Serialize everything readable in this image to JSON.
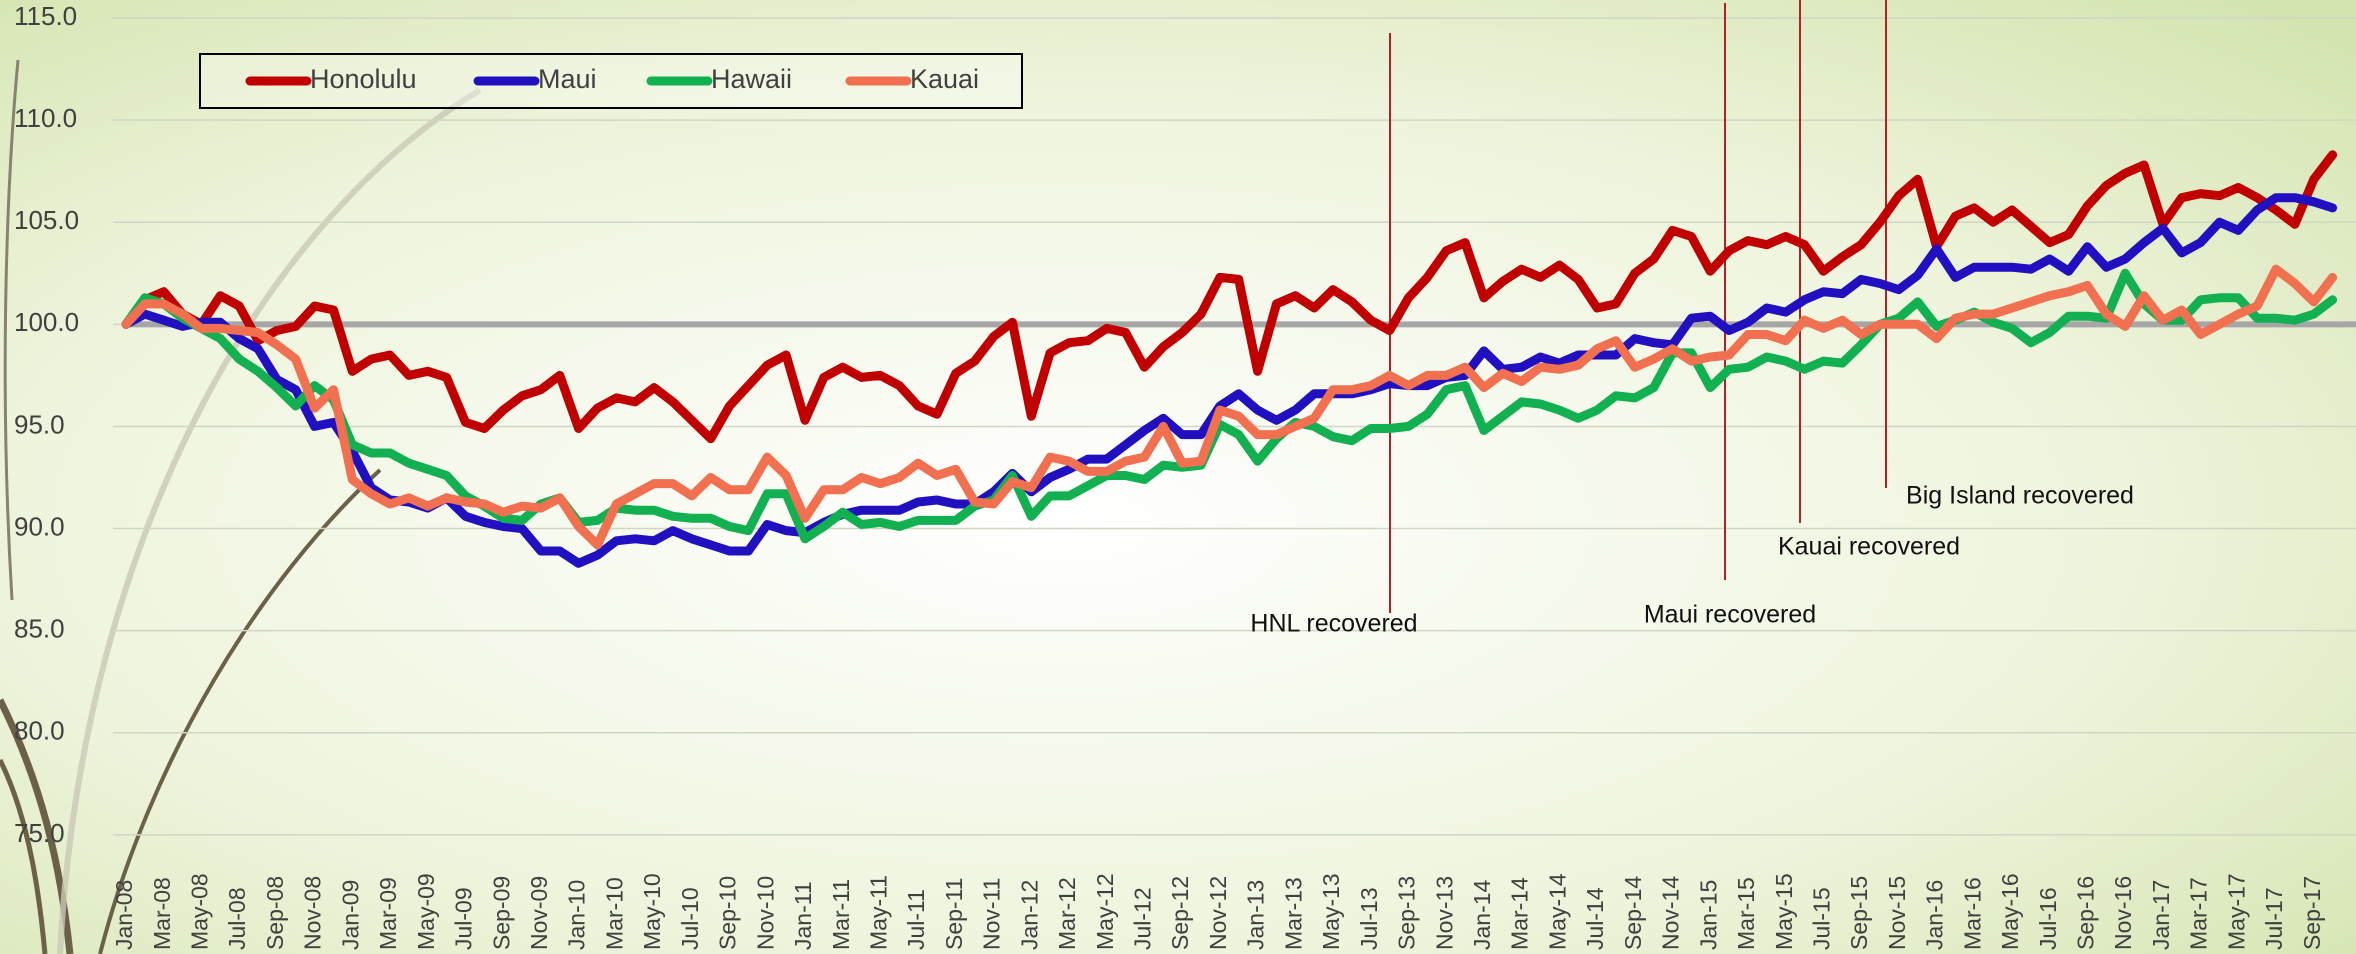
{
  "chart_data": {
    "type": "line",
    "categories": [
      "Jan-08",
      null,
      "Mar-08",
      null,
      "May-08",
      null,
      "Jul-08",
      null,
      "Sep-08",
      null,
      "Nov-08",
      null,
      "Jan-09",
      null,
      "Mar-09",
      null,
      "May-09",
      null,
      "Jul-09",
      null,
      "Sep-09",
      null,
      "Nov-09",
      null,
      "Jan-10",
      null,
      "Mar-10",
      null,
      "May-10",
      null,
      "Jul-10",
      null,
      "Sep-10",
      null,
      "Nov-10",
      null,
      "Jan-11",
      null,
      "Mar-11",
      null,
      "May-11",
      null,
      "Jul-11",
      null,
      "Sep-11",
      null,
      "Nov-11",
      null,
      "Jan-12",
      null,
      "Mar-12",
      null,
      "May-12",
      null,
      "Jul-12",
      null,
      "Sep-12",
      null,
      "Nov-12",
      null,
      "Jan-13",
      null,
      "Mar-13",
      null,
      "May-13",
      null,
      "Jul-13",
      null,
      "Sep-13",
      null,
      "Nov-13",
      null,
      "Jan-14",
      null,
      "Mar-14",
      null,
      "May-14",
      null,
      "Jul-14",
      null,
      "Sep-14",
      null,
      "Nov-14",
      null,
      "Jan-15",
      null,
      "Mar-15",
      null,
      "May-15",
      null,
      "Jul-15",
      null,
      "Sep-15",
      null,
      "Nov-15",
      null,
      "Jan-16",
      null,
      "Mar-16",
      null,
      "May-16",
      null,
      "Jul-16",
      null,
      "Sep-16",
      null,
      "Nov-16",
      null,
      "Jan-17",
      null,
      "Mar-17",
      null,
      "May-17",
      null,
      "Jul-17",
      null,
      "Sep-17",
      null
    ],
    "series": [
      {
        "name": "Honolulu",
        "color": "#c00000",
        "values": [
          100,
          101.2,
          101.6,
          100.5,
          100,
          101.4,
          100.9,
          99.2,
          99.7,
          99.9,
          100.9,
          100.7,
          97.7,
          98.3,
          98.5,
          97.5,
          97.7,
          97.4,
          95.2,
          94.9,
          95.8,
          96.5,
          96.8,
          97.5,
          94.9,
          95.9,
          96.4,
          96.2,
          96.9,
          96.2,
          95.3,
          94.4,
          96.0,
          97.0,
          98.0,
          98.5,
          95.3,
          97.4,
          97.9,
          97.4,
          97.5,
          97.0,
          96.0,
          95.6,
          97.6,
          98.2,
          99.4,
          100.1,
          95.5,
          98.6,
          99.1,
          99.2,
          99.8,
          99.6,
          97.9,
          98.9,
          99.6,
          100.5,
          102.3,
          102.2,
          97.7,
          101.0,
          101.4,
          100.8,
          101.7,
          101.1,
          100.2,
          99.7,
          101.3,
          102.3,
          103.6,
          104.0,
          101.3,
          102.1,
          102.7,
          102.3,
          102.9,
          102.2,
          100.8,
          101.0,
          102.5,
          103.2,
          104.6,
          104.3,
          102.6,
          103.6,
          104.1,
          103.9,
          104.3,
          103.9,
          102.6,
          103.3,
          103.9,
          105.0,
          106.3,
          107.1,
          103.8,
          105.3,
          105.7,
          105.0,
          105.6,
          104.8,
          104.0,
          104.4,
          105.8,
          106.8,
          107.4,
          107.8,
          104.9,
          106.2,
          106.4,
          106.3,
          106.7,
          106.2,
          105.6,
          104.9,
          107.1,
          108.3
        ]
      },
      {
        "name": "Maui",
        "color": "#2010c0",
        "values": [
          100,
          100.5,
          100.2,
          99.9,
          100.1,
          100.1,
          99.3,
          98.8,
          97.3,
          96.8,
          95.0,
          95.2,
          93.8,
          92.0,
          91.4,
          91.3,
          91.0,
          91.5,
          90.6,
          90.3,
          90.1,
          90.0,
          88.9,
          88.9,
          88.3,
          88.7,
          89.4,
          89.5,
          89.4,
          89.9,
          89.5,
          89.2,
          88.9,
          88.9,
          90.2,
          89.9,
          89.8,
          90.3,
          90.7,
          90.9,
          90.9,
          90.9,
          91.3,
          91.4,
          91.2,
          91.2,
          91.8,
          92.7,
          91.8,
          92.5,
          92.9,
          93.4,
          93.4,
          94.1,
          94.8,
          95.4,
          94.6,
          94.6,
          96.0,
          96.6,
          95.8,
          95.3,
          95.8,
          96.6,
          96.6,
          96.6,
          96.8,
          97.1,
          97.0,
          97.0,
          97.4,
          97.5,
          98.7,
          97.8,
          97.9,
          98.4,
          98.1,
          98.5,
          98.5,
          98.5,
          99.3,
          99.1,
          99.0,
          100.3,
          100.4,
          99.7,
          100.1,
          100.8,
          100.6,
          101.2,
          101.6,
          101.5,
          102.2,
          102.0,
          101.7,
          102.4,
          103.7,
          102.3,
          102.8,
          102.8,
          102.8,
          102.7,
          103.2,
          102.6,
          103.8,
          102.8,
          103.2,
          104.0,
          104.7,
          103.5,
          104.0,
          105.0,
          104.6,
          105.6,
          106.2,
          106.2,
          106.0,
          105.7
        ]
      },
      {
        "name": "Hawaii",
        "color": "#12b050",
        "values": [
          100,
          101.3,
          101.0,
          100.3,
          99.8,
          99.3,
          98.3,
          97.7,
          96.9,
          96.0,
          97.0,
          96.3,
          94.1,
          93.7,
          93.7,
          93.2,
          92.9,
          92.6,
          91.6,
          91.1,
          90.5,
          90.4,
          91.2,
          91.5,
          90.3,
          90.4,
          91.0,
          90.9,
          90.9,
          90.6,
          90.5,
          90.5,
          90.1,
          89.9,
          91.7,
          91.7,
          89.5,
          90.1,
          90.8,
          90.2,
          90.3,
          90.1,
          90.4,
          90.4,
          90.4,
          91.1,
          91.4,
          92.6,
          90.6,
          91.6,
          91.6,
          92.1,
          92.6,
          92.6,
          92.4,
          93.1,
          93.0,
          93.1,
          95.1,
          94.6,
          93.3,
          94.4,
          95.2,
          95.0,
          94.5,
          94.3,
          94.9,
          94.9,
          95.0,
          95.6,
          96.8,
          97.0,
          94.8,
          95.5,
          96.2,
          96.1,
          95.8,
          95.4,
          95.8,
          96.5,
          96.4,
          96.9,
          98.6,
          98.6,
          96.9,
          97.8,
          97.9,
          98.4,
          98.2,
          97.8,
          98.2,
          98.1,
          99.0,
          100.0,
          100.3,
          101.1,
          99.9,
          100.2,
          100.6,
          100.1,
          99.8,
          99.1,
          99.6,
          100.4,
          100.4,
          100.3,
          102.5,
          101.0,
          100.2,
          100.2,
          101.2,
          101.3,
          101.3,
          100.3,
          100.3,
          100.2,
          100.5,
          101.2
        ]
      },
      {
        "name": "Kauai",
        "color": "#f07050",
        "values": [
          100,
          101.0,
          101.0,
          100.5,
          99.8,
          99.8,
          99.7,
          99.6,
          99.0,
          98.3,
          95.9,
          96.8,
          92.4,
          91.7,
          91.2,
          91.5,
          91.1,
          91.5,
          91.3,
          91.2,
          90.8,
          91.1,
          91.0,
          91.5,
          90.1,
          89.2,
          91.2,
          91.7,
          92.2,
          92.2,
          91.6,
          92.5,
          91.9,
          91.9,
          93.5,
          92.6,
          90.5,
          91.9,
          91.9,
          92.5,
          92.2,
          92.5,
          93.2,
          92.6,
          92.9,
          91.3,
          91.2,
          92.3,
          92.0,
          93.5,
          93.3,
          92.8,
          92.8,
          93.3,
          93.5,
          95.0,
          93.2,
          93.3,
          95.8,
          95.5,
          94.6,
          94.6,
          95.0,
          95.4,
          96.8,
          96.8,
          97.0,
          97.5,
          97.0,
          97.5,
          97.5,
          97.9,
          96.9,
          97.6,
          97.2,
          97.9,
          97.8,
          98.0,
          98.8,
          99.2,
          97.9,
          98.3,
          98.8,
          98.2,
          98.4,
          98.5,
          99.5,
          99.5,
          99.2,
          100.2,
          99.8,
          100.2,
          99.5,
          100.0,
          100.0,
          100.0,
          99.3,
          100.3,
          100.5,
          100.5,
          100.8,
          101.1,
          101.4,
          101.6,
          101.9,
          100.5,
          99.9,
          101.4,
          100.2,
          100.7,
          99.5,
          100.0,
          100.5,
          100.9,
          102.7,
          102.0,
          101.1,
          102.3
        ]
      }
    ],
    "ylim": [
      70,
      115
    ],
    "yticks": [
      {
        "value": 75,
        "label": "75.0"
      },
      {
        "value": 80,
        "label": "80.0"
      },
      {
        "value": 85,
        "label": "85.0"
      },
      {
        "value": 90,
        "label": "90.0"
      },
      {
        "value": 95,
        "label": "95.0"
      },
      {
        "value": 100,
        "label": "100.0"
      },
      {
        "value": 105,
        "label": "105.0"
      },
      {
        "value": 110,
        "label": "110.0"
      },
      {
        "value": 115,
        "label": "115.0"
      }
    ],
    "grid": true,
    "reference_line": 100,
    "legend": "top-left",
    "annotations": [
      "HNL recovered",
      "Maui recovered",
      "Kauai recovered",
      "Big Island recovered"
    ]
  }
}
